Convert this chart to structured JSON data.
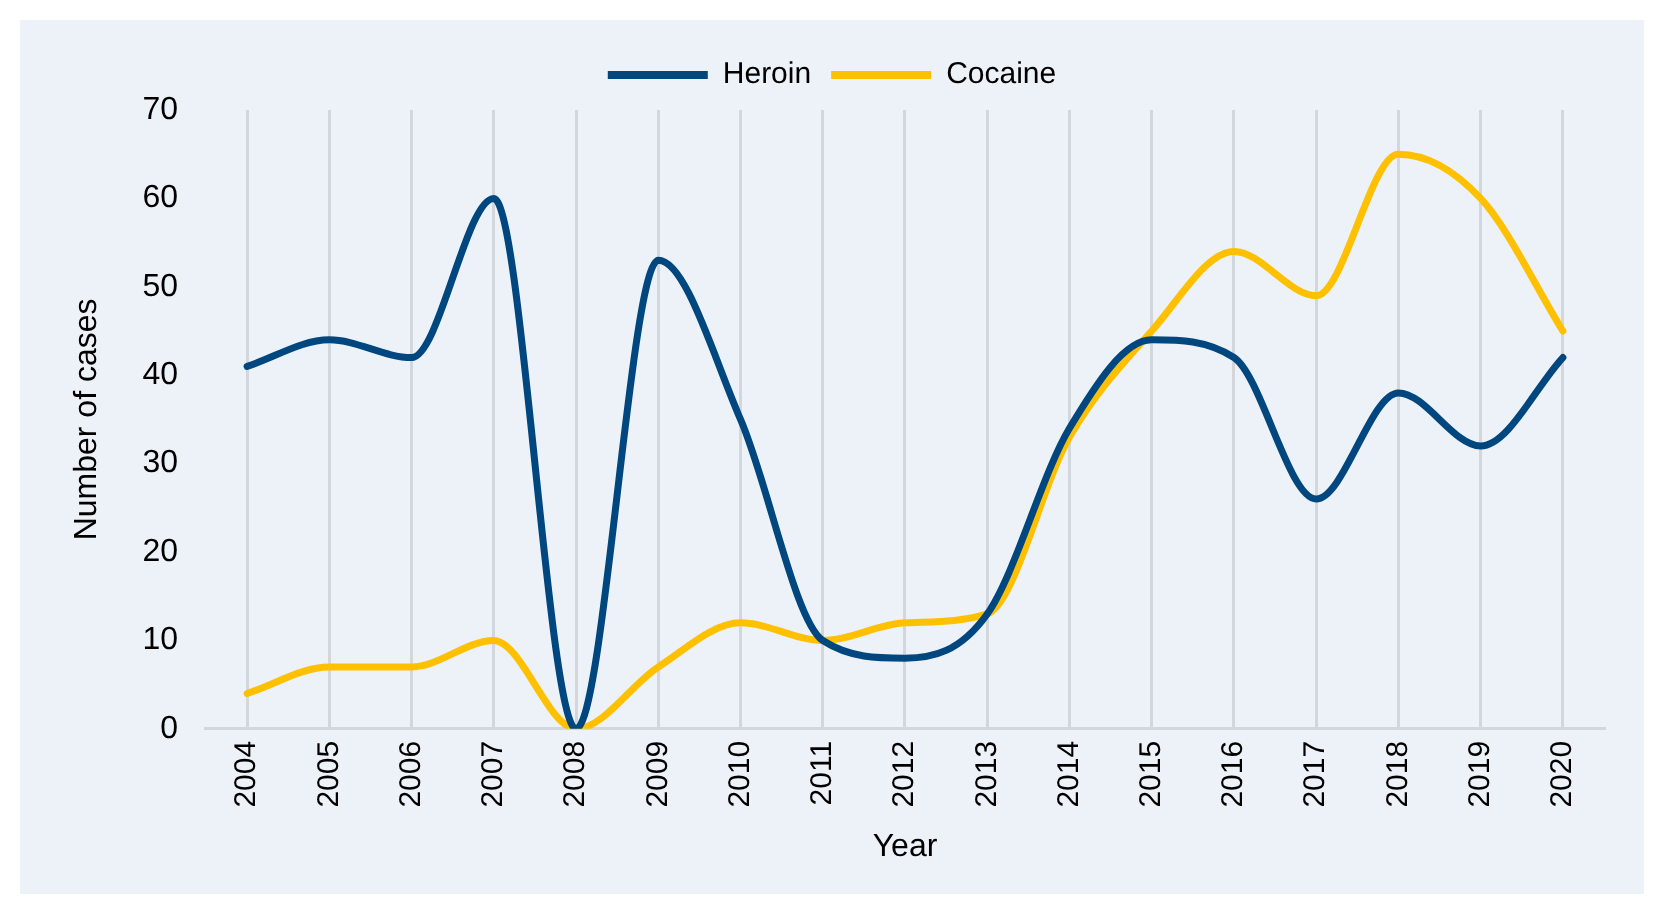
{
  "chart_data": {
    "type": "line",
    "xlabel": "Year",
    "ylabel": "Number of cases",
    "categories": [
      "2004",
      "2005",
      "2006",
      "2007",
      "2008",
      "2009",
      "2010",
      "2011",
      "2012",
      "2013",
      "2014",
      "2015",
      "2016",
      "2017",
      "2018",
      "2019",
      "2020"
    ],
    "series": [
      {
        "name": "Heroin",
        "color": "#00477f",
        "values": [
          41,
          44,
          42,
          60,
          0,
          53,
          35,
          10,
          8,
          13,
          34,
          44,
          42,
          26,
          38,
          32,
          42
        ]
      },
      {
        "name": "Cocaine",
        "color": "#ffc000",
        "values": [
          4,
          7,
          7,
          10,
          0,
          7,
          12,
          10,
          12,
          13,
          33,
          45,
          54,
          49,
          65,
          60,
          45
        ]
      }
    ],
    "ylim": [
      0,
      70
    ],
    "yticks": [
      0,
      10,
      20,
      30,
      40,
      50,
      60,
      70
    ],
    "grid": "x",
    "legend": "top",
    "marker": "none",
    "line_style": "solid"
  }
}
